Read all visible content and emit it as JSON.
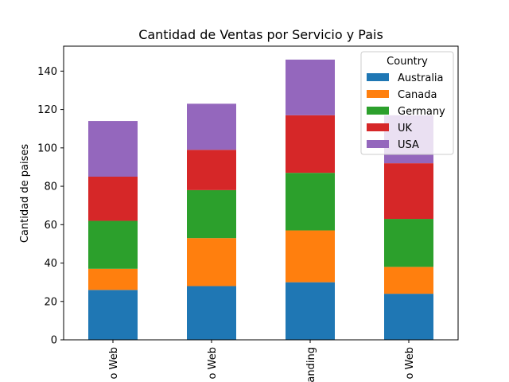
{
  "chart_data": {
    "type": "bar",
    "stacked": true,
    "title": "Cantidad de Ventas por Servicio y Pais",
    "xlabel": "",
    "ylabel": "Cantidad de paises",
    "categories": [
      "o Web",
      "o Web",
      "anding",
      "o Web"
    ],
    "ylim": [
      0,
      153
    ],
    "yticks": [
      0,
      20,
      40,
      60,
      80,
      100,
      120,
      140
    ],
    "legend": {
      "title": "Country",
      "placement": "top-right"
    },
    "series": [
      {
        "name": "Australia",
        "color": "#1f77b4",
        "values": [
          26,
          28,
          30,
          24
        ]
      },
      {
        "name": "Canada",
        "color": "#ff7f0e",
        "values": [
          11,
          25,
          27,
          14
        ]
      },
      {
        "name": "Germany",
        "color": "#2ca02c",
        "values": [
          25,
          25,
          30,
          25
        ]
      },
      {
        "name": "UK",
        "color": "#d62728",
        "values": [
          23,
          21,
          30,
          29
        ]
      },
      {
        "name": "USA",
        "color": "#9467bd",
        "values": [
          29,
          24,
          29,
          25
        ]
      }
    ]
  }
}
